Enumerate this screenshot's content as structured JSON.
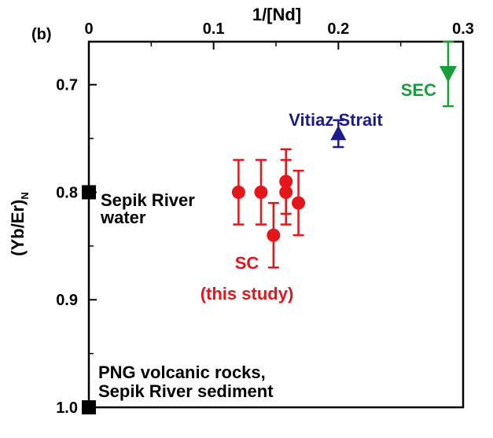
{
  "chart_data": {
    "type": "scatter",
    "panel_label": "(b)",
    "xlabel": "1/[Nd]",
    "ylabel_main": "(Yb/Er)",
    "ylabel_sub": "N",
    "xlim": [
      0,
      0.3
    ],
    "ylim": [
      0.66,
      1.0
    ],
    "y_inverted": true,
    "x_axis_position": "top",
    "x_ticks": [
      {
        "value": 0,
        "label": "0"
      },
      {
        "value": 0.1,
        "label": "0.1"
      },
      {
        "value": 0.2,
        "label": "0.2"
      },
      {
        "value": 0.3,
        "label": "0.3"
      }
    ],
    "x_minor_ticks": [
      0.05,
      0.15,
      0.25
    ],
    "y_ticks": [
      {
        "value": 0.7,
        "label": "0.7"
      },
      {
        "value": 0.8,
        "label": "0.8"
      },
      {
        "value": 0.9,
        "label": "0.9"
      },
      {
        "value": 1.0,
        "label": "1.0"
      }
    ],
    "y_minor_ticks": [
      0.75,
      0.85,
      0.95
    ],
    "grid": false,
    "series": [
      {
        "name": "SEC",
        "marker": "triangle-down",
        "color": "#1a9e3c",
        "points": [
          {
            "x": 0.288,
            "y": 0.69,
            "err_low": 0.66,
            "err_high": 0.72
          }
        ]
      },
      {
        "name": "Vitiaz Strait",
        "marker": "triangle-up",
        "color": "#1c1c8c",
        "points": [
          {
            "x": 0.2,
            "y": 0.745,
            "err_low": 0.733,
            "err_high": 0.758
          }
        ]
      },
      {
        "name": "SC\n(this study)",
        "marker": "circle",
        "color": "#e3161b",
        "points": [
          {
            "x": 0.12,
            "y": 0.8,
            "err_low": 0.77,
            "err_high": 0.83
          },
          {
            "x": 0.138,
            "y": 0.8,
            "err_low": 0.77,
            "err_high": 0.83
          },
          {
            "x": 0.148,
            "y": 0.84,
            "err_low": 0.81,
            "err_high": 0.87
          },
          {
            "x": 0.158,
            "y": 0.79,
            "err_low": 0.76,
            "err_high": 0.82
          },
          {
            "x": 0.158,
            "y": 0.8,
            "err_low": 0.77,
            "err_high": 0.83
          },
          {
            "x": 0.168,
            "y": 0.81,
            "err_low": 0.78,
            "err_high": 0.84
          }
        ]
      },
      {
        "name": "Sepik River\nwater",
        "marker": "square",
        "color": "#000000",
        "points": [
          {
            "x": 0.0,
            "y": 0.8
          }
        ]
      },
      {
        "name": "PNG volcanic rocks,\nSepik River sediment",
        "marker": "square",
        "color": "#000000",
        "points": [
          {
            "x": 0.0,
            "y": 1.0
          }
        ]
      }
    ],
    "annotations": [
      {
        "text": "SEC",
        "color": "#1a9e3c"
      },
      {
        "text": "Vitiaz Strait",
        "color": "#1c1c8c"
      },
      {
        "text": "SC",
        "color": "#e3161b"
      },
      {
        "text": "(this study)",
        "color": "#e3161b"
      },
      {
        "text": "Sepik River",
        "color": "#000000"
      },
      {
        "text": "water",
        "color": "#000000"
      },
      {
        "text": "PNG volcanic rocks,",
        "color": "#000000"
      },
      {
        "text": "Sepik River sediment",
        "color": "#000000"
      }
    ]
  }
}
